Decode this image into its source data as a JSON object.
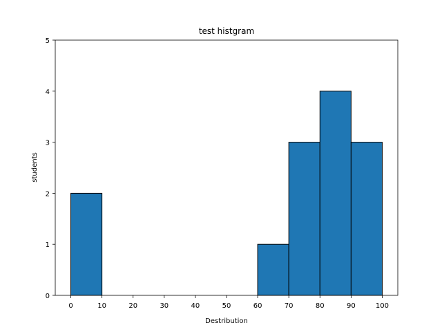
{
  "chart_data": {
    "type": "bar",
    "title": "test histgram",
    "xlabel": "Destribution",
    "ylabel": "students",
    "bins": [
      {
        "start": 0,
        "end": 10,
        "count": 2
      },
      {
        "start": 10,
        "end": 20,
        "count": 0
      },
      {
        "start": 20,
        "end": 30,
        "count": 0
      },
      {
        "start": 30,
        "end": 40,
        "count": 0
      },
      {
        "start": 40,
        "end": 50,
        "count": 0
      },
      {
        "start": 50,
        "end": 60,
        "count": 0
      },
      {
        "start": 60,
        "end": 70,
        "count": 1
      },
      {
        "start": 70,
        "end": 80,
        "count": 3
      },
      {
        "start": 80,
        "end": 90,
        "count": 4
      },
      {
        "start": 90,
        "end": 100,
        "count": 3
      }
    ],
    "xlim": [
      -5,
      105
    ],
    "ylim": [
      0,
      5
    ],
    "xticks": [
      0,
      10,
      20,
      30,
      40,
      50,
      60,
      70,
      80,
      90,
      100
    ],
    "yticks": [
      0,
      1,
      2,
      3,
      4,
      5
    ],
    "grid": false,
    "bar_color": "#1f77b4",
    "edge_color": "#000000"
  }
}
